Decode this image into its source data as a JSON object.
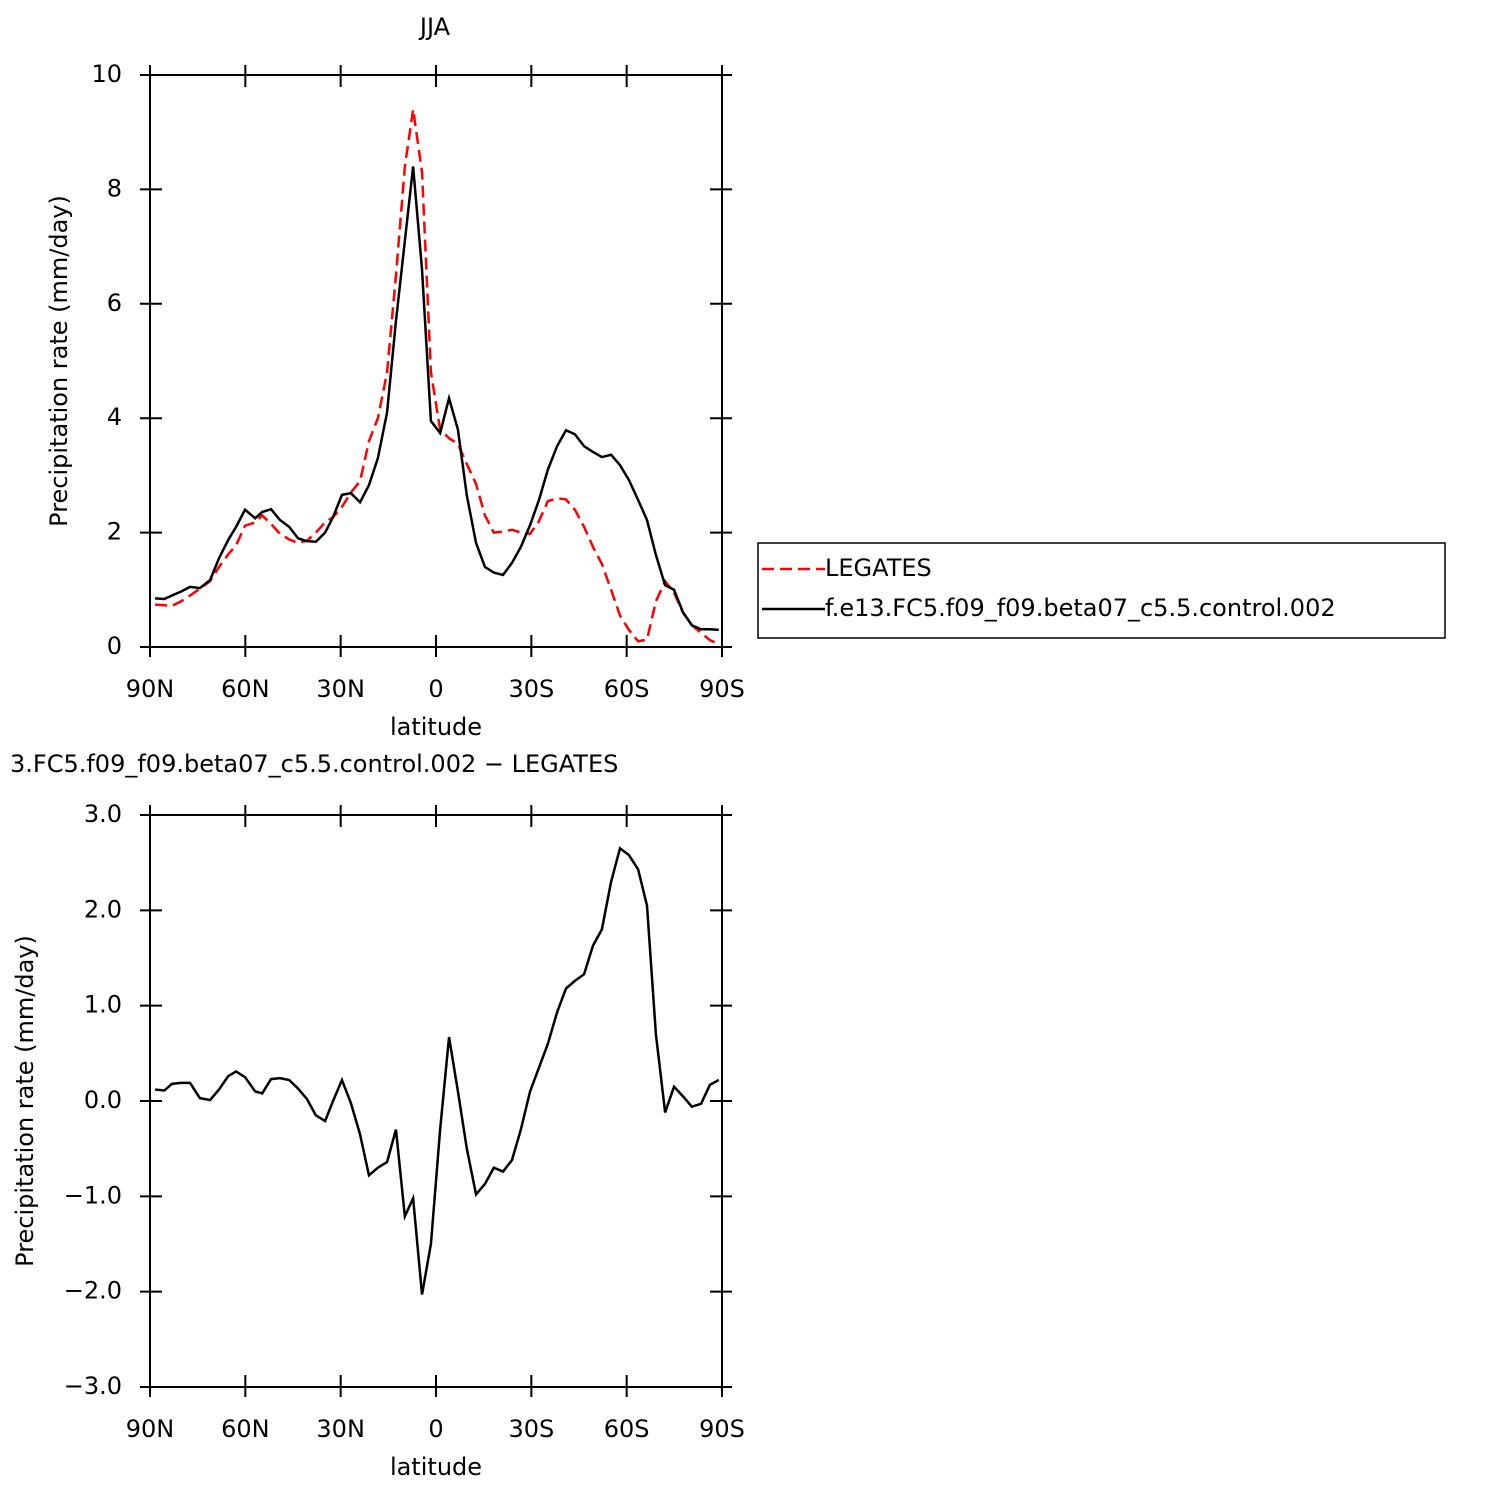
{
  "chart_data": [
    {
      "type": "line",
      "title": "JJA",
      "xlabel": "latitude",
      "ylabel": "Precipitation rate (mm/day)",
      "x": [
        88.4,
        85.5,
        83.1,
        80.2,
        77.4,
        74.3,
        71.1,
        68.3,
        65.4,
        62.9,
        60.1,
        56.9,
        54.7,
        51.9,
        49.1,
        46.2,
        43.4,
        40.6,
        37.8,
        34.9,
        32.4,
        29.6,
        26.8,
        23.9,
        21.1,
        18.3,
        15.4,
        12.6,
        9.8,
        7.2,
        4.4,
        1.6,
        -1.3,
        -4.1,
        -6.9,
        -9.7,
        -12.6,
        -15.4,
        -18.2,
        -21.1,
        -23.9,
        -26.7,
        -29.6,
        -32.4,
        -35.2,
        -38.1,
        -40.9,
        -43.7,
        -46.6,
        -49.4,
        -52.2,
        -55.1,
        -57.9,
        -60.7,
        -63.6,
        -66.4,
        -69.2,
        -72.1,
        -74.9,
        -77.7,
        -80.5,
        -83.4,
        -86.2,
        -89.0
      ],
      "series": [
        {
          "name": "LEGATES",
          "color": "#ff0000",
          "style": "dashed",
          "values": [
            0.74,
            0.73,
            0.72,
            0.8,
            0.9,
            1.02,
            1.15,
            1.4,
            1.62,
            1.78,
            2.12,
            2.18,
            2.3,
            2.15,
            1.98,
            1.88,
            1.82,
            1.86,
            2.0,
            2.18,
            2.27,
            2.45,
            2.7,
            2.9,
            3.6,
            4.0,
            4.8,
            6.5,
            8.4,
            9.4,
            8.3,
            4.8,
            3.8,
            3.65,
            3.55,
            3.2,
            2.85,
            2.3,
            2.0,
            2.02,
            2.05,
            2.0,
            1.98,
            2.2,
            2.55,
            2.6,
            2.58,
            2.4,
            2.1,
            1.75,
            1.45,
            1.0,
            0.55,
            0.3,
            0.1,
            0.13,
            0.8,
            1.15,
            0.95,
            0.6,
            0.38,
            0.25,
            0.12,
            0.05
          ]
        },
        {
          "name": "f.e13.FC5.f09_f09.beta07_c5.5.control.002",
          "color": "#000000",
          "style": "solid",
          "values": [
            0.85,
            0.84,
            0.9,
            0.97,
            1.05,
            1.03,
            1.17,
            1.55,
            1.87,
            2.1,
            2.4,
            2.25,
            2.36,
            2.41,
            2.22,
            2.1,
            1.9,
            1.85,
            1.84,
            2.0,
            2.27,
            2.66,
            2.69,
            2.53,
            2.83,
            3.3,
            4.1,
            5.7,
            7.1,
            8.4,
            6.6,
            3.95,
            3.74,
            4.35,
            3.8,
            2.65,
            1.82,
            1.4,
            1.3,
            1.26,
            1.47,
            1.75,
            2.13,
            2.57,
            3.1,
            3.51,
            3.79,
            3.72,
            3.51,
            3.41,
            3.32,
            3.36,
            3.18,
            2.92,
            2.57,
            2.22,
            1.61,
            1.08,
            1.0,
            0.61,
            0.38,
            0.31,
            0.31,
            0.3
          ]
        }
      ],
      "xlim": [
        90,
        -90
      ],
      "xticks": [
        {
          "value": 90,
          "label": "90N"
        },
        {
          "value": 60,
          "label": "60N"
        },
        {
          "value": 30,
          "label": "30N"
        },
        0,
        {
          "value": -30,
          "label": "30S"
        },
        {
          "value": -60,
          "label": "60S"
        },
        {
          "value": -90,
          "label": "90S"
        }
      ],
      "ylim": [
        0,
        10
      ],
      "yticks": [
        0,
        2,
        4,
        6,
        8,
        10
      ],
      "legend": "right"
    },
    {
      "type": "line",
      "title": "3.FC5.f09_f09.beta07_c5.5.control.002 − LEGATES",
      "xlabel": "latitude",
      "ylabel": "Precipitation rate (mm/day)",
      "x": [
        88.4,
        85.5,
        83.1,
        80.2,
        77.4,
        74.3,
        71.1,
        68.3,
        65.4,
        62.9,
        60.1,
        56.9,
        54.7,
        51.9,
        49.1,
        46.2,
        43.4,
        40.6,
        37.8,
        34.9,
        32.4,
        29.6,
        26.8,
        23.9,
        21.1,
        18.3,
        15.4,
        12.6,
        9.8,
        7.2,
        4.4,
        1.6,
        -1.3,
        -4.1,
        -6.9,
        -9.7,
        -12.6,
        -15.4,
        -18.2,
        -21.1,
        -23.9,
        -26.7,
        -29.6,
        -32.4,
        -35.2,
        -38.1,
        -40.9,
        -43.7,
        -46.6,
        -49.4,
        -52.2,
        -55.1,
        -57.9,
        -60.7,
        -63.6,
        -66.4,
        -69.2,
        -72.1,
        -74.9,
        -77.7,
        -80.5,
        -83.4,
        -86.2,
        -89.0
      ],
      "series": [
        {
          "color": "#000000",
          "style": "solid",
          "values": [
            0.12,
            0.11,
            0.18,
            0.19,
            0.19,
            0.03,
            0.01,
            0.12,
            0.26,
            0.31,
            0.25,
            0.1,
            0.08,
            0.23,
            0.24,
            0.22,
            0.13,
            0.02,
            -0.15,
            -0.21,
            0.0,
            0.22,
            -0.02,
            -0.35,
            -0.78,
            -0.7,
            -0.64,
            -0.3,
            -1.21,
            -1.02,
            -2.03,
            -1.5,
            -0.3,
            0.67,
            0.1,
            -0.5,
            -0.98,
            -0.87,
            -0.7,
            -0.74,
            -0.62,
            -0.3,
            0.1,
            0.35,
            0.6,
            0.93,
            1.18,
            1.26,
            1.33,
            1.63,
            1.8,
            2.3,
            2.65,
            2.58,
            2.43,
            2.05,
            0.7,
            -0.12,
            0.15,
            0.05,
            -0.06,
            -0.03,
            0.17,
            0.22
          ]
        }
      ],
      "xlim": [
        90,
        -90
      ],
      "xticks": [
        {
          "value": 90,
          "label": "90N"
        },
        {
          "value": 60,
          "label": "60N"
        },
        {
          "value": 30,
          "label": "30N"
        },
        0,
        {
          "value": -30,
          "label": "30S"
        },
        {
          "value": -60,
          "label": "60S"
        },
        {
          "value": -90,
          "label": "90S"
        }
      ],
      "ylim": [
        -3,
        3
      ],
      "yticks": [
        {
          "value": -3,
          "label": "−3.0"
        },
        {
          "value": -2,
          "label": "−2.0"
        },
        {
          "value": -1,
          "label": "−1.0"
        },
        {
          "value": 0,
          "label": "0.0"
        },
        {
          "value": 1,
          "label": "1.0"
        },
        {
          "value": 2,
          "label": "2.0"
        },
        {
          "value": 3,
          "label": "3.0"
        }
      ]
    }
  ]
}
